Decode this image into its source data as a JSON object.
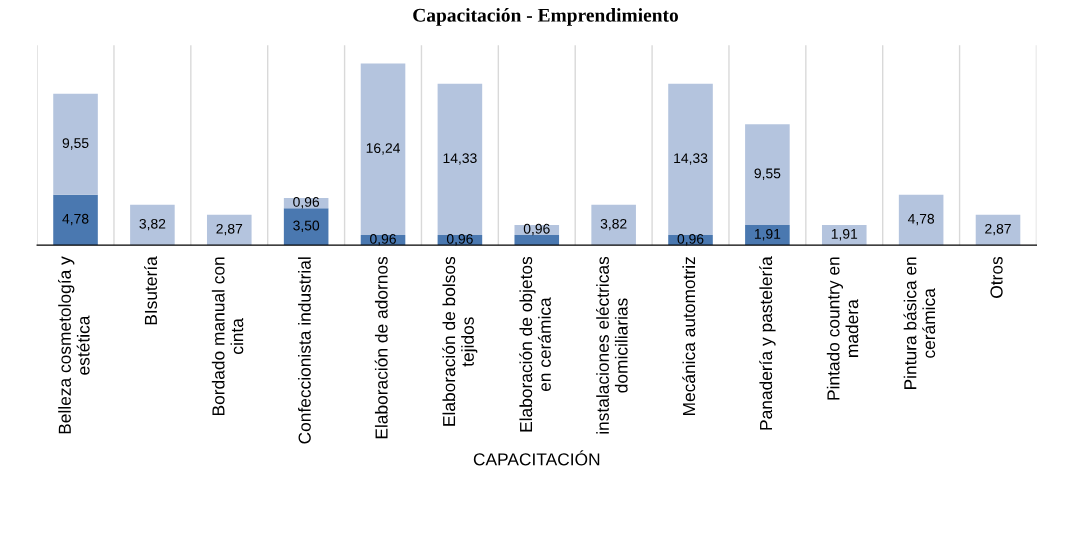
{
  "chart_data": {
    "type": "bar",
    "title": "Capacitación - Emprendimiento",
    "xlabel": "CAPACITACIÓN",
    "stacked": true,
    "grid": "x",
    "legend": false,
    "tick_labels": "x",
    "categories": [
      "Belleza cosmetología y\nestética",
      "BIsutería",
      "Bordado manual con\ncinta",
      "Confeccionista industrial",
      "Elaboración de adornos",
      "Elaboración de bolsos\ntejidos",
      "Elaboración de objetos\nen cerámica",
      "instalaciones eléctricas\ndomiciliarias",
      "Mecánica automotriz",
      "Panadería y pastelería",
      "Pintado country en\nmadera",
      "Pintura básica en\ncerámica",
      "Otros"
    ],
    "series": [
      {
        "color": "#4a78b0",
        "values": [
          4.78,
          null,
          null,
          3.5,
          0.96,
          0.96,
          0.96,
          null,
          0.96,
          1.91,
          null,
          null,
          null
        ],
        "value_labels": [
          "4,78",
          null,
          null,
          "3,50",
          "0,96",
          "0,96",
          null,
          null,
          "0,96",
          "1,91",
          null,
          null,
          null
        ]
      },
      {
        "color": "#b4c4de",
        "values": [
          9.55,
          3.82,
          2.87,
          0.96,
          16.24,
          14.33,
          0.96,
          3.82,
          14.33,
          9.55,
          1.91,
          4.78,
          2.87
        ],
        "value_labels": [
          "9,55",
          "3,82",
          "2,87",
          "0,96",
          "16,24",
          "14,33",
          "0,96",
          "3,82",
          "14,33",
          "9,55",
          "1,91",
          "4,78",
          "2,87"
        ]
      }
    ]
  }
}
